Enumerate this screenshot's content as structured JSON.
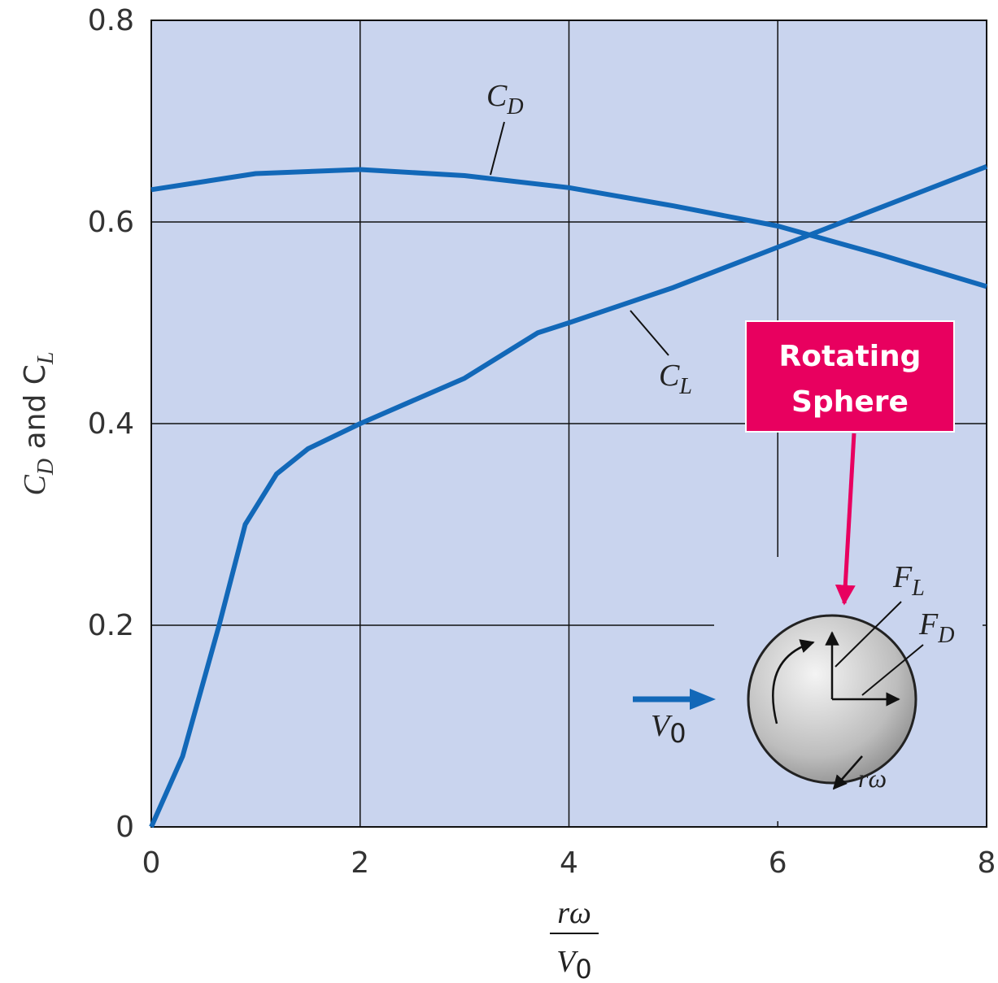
{
  "chart_data": {
    "type": "line",
    "ylabel": [
      "C",
      "D",
      " and C",
      "L"
    ],
    "xlabel": {
      "numerator": "rω",
      "denominator": "V",
      "denominator_subscript": "0"
    },
    "xlim": [
      0,
      8
    ],
    "ylim": [
      0,
      0.8
    ],
    "xticks": [
      0,
      2,
      4,
      6,
      8
    ],
    "yticks": [
      0,
      0.2,
      0.4,
      0.6,
      0.8
    ],
    "grid": true,
    "series": [
      {
        "name": "C",
        "name_subscript": "D",
        "color": "#1268b8",
        "x": [
          0,
          1,
          2,
          3,
          4,
          5,
          6,
          7,
          8
        ],
        "values": [
          0.632,
          0.648,
          0.652,
          0.646,
          0.634,
          0.616,
          0.596,
          0.567,
          0.536
        ]
      },
      {
        "name": "C",
        "name_subscript": "L",
        "color": "#1268b8",
        "x": [
          0,
          0.3,
          0.65,
          0.9,
          1.2,
          1.5,
          2,
          3,
          3.7,
          4,
          5,
          6,
          7,
          8
        ],
        "values": [
          0,
          0.07,
          0.2,
          0.3,
          0.35,
          0.375,
          0.4,
          0.445,
          0.49,
          0.5,
          0.535,
          0.575,
          0.615,
          0.655
        ]
      }
    ],
    "inset": {
      "lift_label": {
        "text": "F",
        "subscript": "L"
      },
      "drag_label": {
        "text": "F",
        "subscript": "D"
      },
      "velocity_label": {
        "text": "V",
        "subscript": "0"
      },
      "surface_speed_label": "rω"
    },
    "callout": [
      "Rotating",
      "Sphere"
    ]
  }
}
